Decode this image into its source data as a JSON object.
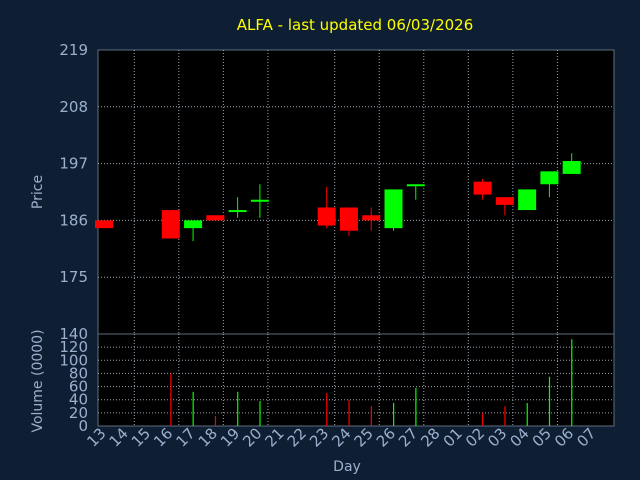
{
  "chart_data": {
    "title": "ALFA - last updated 06/03/2026",
    "type": "candlestick",
    "xlabel": "Day",
    "grid": true,
    "colors": {
      "background": "#0f1f33",
      "plot_background": "#000000",
      "up": "#00ff00",
      "down": "#ff0000",
      "grid": "#9aa7b8",
      "text": "#9bb0cc",
      "title": "#ffff00"
    },
    "price_panel": {
      "ylabel": "Price",
      "ylim": [
        164,
        219
      ],
      "yticks": [
        219,
        208,
        197,
        186,
        175
      ]
    },
    "volume_panel": {
      "ylabel": "Volume (0000)",
      "ylim": [
        0,
        140
      ],
      "yticks": [
        140,
        120,
        100,
        80,
        60,
        40,
        20,
        0
      ]
    },
    "x_labels": [
      "13",
      "14",
      "15",
      "16",
      "17",
      "18",
      "19",
      "20",
      "21",
      "22",
      "23",
      "24",
      "25",
      "26",
      "27",
      "28",
      "01",
      "02",
      "03",
      "04",
      "05",
      "06",
      "07"
    ],
    "candles": [
      {
        "x": "13",
        "open": 186,
        "high": 186,
        "low": 184.5,
        "close": 184.5,
        "volume": 0
      },
      {
        "x": "16",
        "open": 188,
        "high": 188,
        "low": 182.5,
        "close": 182.5,
        "volume": 80
      },
      {
        "x": "17",
        "open": 184.5,
        "high": 186,
        "low": 182,
        "close": 186,
        "volume": 52
      },
      {
        "x": "18",
        "open": 187,
        "high": 187,
        "low": 186,
        "close": 186,
        "volume": 15
      },
      {
        "x": "19",
        "open": 188,
        "high": 190.5,
        "low": 186.5,
        "close": 188,
        "volume": 52
      },
      {
        "x": "20",
        "open": 190,
        "high": 193,
        "low": 186.5,
        "close": 190,
        "volume": 38
      },
      {
        "x": "23",
        "open": 188.5,
        "high": 192.5,
        "low": 184.5,
        "close": 185,
        "volume": 50
      },
      {
        "x": "24",
        "open": 188.5,
        "high": 188.5,
        "low": 183,
        "close": 184,
        "volume": 40
      },
      {
        "x": "25",
        "open": 187,
        "high": 188.5,
        "low": 184,
        "close": 186,
        "volume": 30
      },
      {
        "x": "26",
        "open": 184.5,
        "high": 192,
        "low": 184,
        "close": 192,
        "volume": 35
      },
      {
        "x": "27",
        "open": 193,
        "high": 193,
        "low": 190,
        "close": 193,
        "volume": 58
      },
      {
        "x": "02",
        "open": 193.5,
        "high": 194,
        "low": 190,
        "close": 191,
        "volume": 20
      },
      {
        "x": "03",
        "open": 190.5,
        "high": 190.5,
        "low": 187,
        "close": 189,
        "volume": 30
      },
      {
        "x": "04",
        "open": 188,
        "high": 192,
        "low": 188,
        "close": 192,
        "volume": 35
      },
      {
        "x": "05",
        "open": 193,
        "high": 195.5,
        "low": 190.5,
        "close": 195.5,
        "volume": 75
      },
      {
        "x": "06",
        "open": 195,
        "high": 199,
        "low": 195,
        "close": 197.5,
        "volume": 132
      }
    ]
  }
}
